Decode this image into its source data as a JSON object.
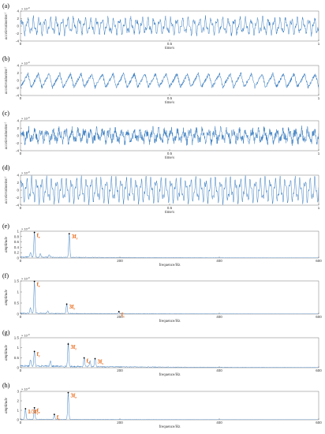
{
  "chart_data": [
    {
      "id": "a",
      "panel_label": "(a)",
      "type": "line",
      "ylabel": "acceleration/ms",
      "ylabel_sup": "-2",
      "xlabel": "time/s",
      "xlim": [
        0,
        1
      ],
      "ylim": [
        -4,
        4
      ],
      "y_exponent": "× 10",
      "y_exponent_power": "-3",
      "xticks": [
        0,
        0.5,
        1
      ],
      "yticks": [
        -4,
        -2,
        0,
        2,
        4
      ],
      "series": [
        {
          "cycles": 52,
          "amplitude": 1.6,
          "noise": 0.5,
          "seed": 11,
          "shape": "sine",
          "points": 1400
        }
      ]
    },
    {
      "id": "b",
      "panel_label": "(b)",
      "type": "line",
      "ylabel": "acceleration/ms",
      "ylabel_sup": "-2",
      "xlabel": "time/s",
      "xlim": [
        0,
        1
      ],
      "ylim": [
        -4,
        4
      ],
      "y_exponent": "× 10",
      "y_exponent_power": "-3",
      "xticks": [
        0,
        0.5,
        1
      ],
      "yticks": [
        -4,
        -2,
        0,
        2,
        4
      ],
      "series": [
        {
          "cycles": 28,
          "amplitude": 1.8,
          "noise": 0.45,
          "seed": 23,
          "shape": "saw",
          "points": 1400
        }
      ]
    },
    {
      "id": "c",
      "panel_label": "(c)",
      "type": "line",
      "ylabel": "acceleration/ms",
      "ylabel_sup": "-2",
      "xlabel": "time/s",
      "xlim": [
        0,
        1
      ],
      "ylim": [
        -4,
        4
      ],
      "y_exponent": "× 10",
      "y_exponent_power": "-3",
      "xticks": [
        0,
        0.5,
        1
      ],
      "yticks": [
        -4,
        -2,
        0,
        2,
        4
      ],
      "series": [
        {
          "cycles": 48,
          "amplitude": 1.2,
          "noise": 1.0,
          "seed": 37,
          "shape": "sine",
          "points": 1400
        }
      ]
    },
    {
      "id": "d",
      "panel_label": "(d)",
      "type": "line",
      "ylabel": "acceleration/ms",
      "ylabel_sup": "-2",
      "xlabel": "time/s",
      "xlim": [
        0,
        1
      ],
      "ylim": [
        -4,
        4
      ],
      "y_exponent": "× 10",
      "y_exponent_power": "-3",
      "xticks": [
        0,
        0.5,
        1
      ],
      "yticks": [
        -4,
        -2,
        0,
        2,
        4
      ],
      "series": [
        {
          "cycles": 60,
          "amplitude": 2.4,
          "noise": 0.35,
          "seed": 41,
          "shape": "sine",
          "points": 1400
        }
      ]
    },
    {
      "id": "e",
      "panel_label": "(e)",
      "type": "line",
      "ylabel": "amplitude",
      "xlabel": "frequence/Hz",
      "xlim": [
        0,
        600
      ],
      "ylim": [
        0,
        1.0
      ],
      "y_exponent": "× 10",
      "y_exponent_power": "-3",
      "xticks": [
        0,
        200,
        400,
        600
      ],
      "yticks": [
        0,
        0.2,
        0.4,
        0.6,
        0.8,
        1.0
      ],
      "noise_floor": 0.05,
      "seed": 5,
      "peaks": [
        {
          "x": 28,
          "y": 0.93,
          "label": "f",
          "label_sub": "r"
        },
        {
          "x": 98,
          "y": 0.88,
          "label": "3f",
          "label_sub": "r"
        },
        {
          "x": 20,
          "y": 0.18
        },
        {
          "x": 40,
          "y": 0.14
        },
        {
          "x": 58,
          "y": 0.09
        }
      ]
    },
    {
      "id": "f",
      "panel_label": "(f)",
      "type": "line",
      "ylabel": "amplitude",
      "xlabel": "frequence/Hz",
      "xlim": [
        0,
        600
      ],
      "ylim": [
        0,
        1.5
      ],
      "y_exponent": "× 10",
      "y_exponent_power": "-3",
      "xticks": [
        0,
        200,
        400,
        600
      ],
      "yticks": [
        0,
        0.5,
        1.0,
        1.5
      ],
      "noise_floor": 0.05,
      "seed": 9,
      "peaks": [
        {
          "x": 28,
          "y": 1.45,
          "label": "f",
          "label_sub": "r"
        },
        {
          "x": 93,
          "y": 0.42,
          "label": "3f",
          "label_sub": "r"
        },
        {
          "x": 198,
          "y": 0.08,
          "label": "f",
          "label_sub": "s"
        },
        {
          "x": 20,
          "y": 0.25
        },
        {
          "x": 55,
          "y": 0.12
        }
      ]
    },
    {
      "id": "g",
      "panel_label": "(g)",
      "type": "line",
      "ylabel": "amplitude",
      "xlabel": "frequence/Hz",
      "xlim": [
        0,
        600
      ],
      "ylim": [
        0,
        1.5
      ],
      "y_exponent": "× 10",
      "y_exponent_power": "-3",
      "xticks": [
        0,
        200,
        400,
        600
      ],
      "yticks": [
        0,
        0.5,
        1.0,
        1.5
      ],
      "noise_floor": 0.12,
      "seed": 17,
      "peaks": [
        {
          "x": 28,
          "y": 0.78,
          "label": "f",
          "label_sub": "r"
        },
        {
          "x": 96,
          "y": 1.15,
          "label": "3f",
          "label_sub": "r"
        },
        {
          "x": 128,
          "y": 0.46,
          "label": "f",
          "label_sub": "s"
        },
        {
          "x": 150,
          "y": 0.42,
          "label": "3f",
          "label_sub": "s"
        },
        {
          "x": 20,
          "y": 0.32
        },
        {
          "x": 60,
          "y": 0.3
        },
        {
          "x": 140,
          "y": 0.28
        }
      ]
    },
    {
      "id": "h",
      "panel_label": "(h)",
      "type": "line",
      "ylabel": "amplitude",
      "xlabel": "frequence/Hz",
      "xlim": [
        0,
        600
      ],
      "ylim": [
        0,
        3
      ],
      "y_exponent": "× 10",
      "y_exponent_power": "-3",
      "xticks": [
        0,
        200,
        400,
        600
      ],
      "yticks": [
        0,
        1,
        2,
        3
      ],
      "noise_floor": 0.07,
      "seed": 29,
      "peaks": [
        {
          "x": 10,
          "y": 1.1,
          "label": "1/3f",
          "label_sub": "r"
        },
        {
          "x": 28,
          "y": 1.2,
          "label": "f",
          "label_sub": "r"
        },
        {
          "x": 68,
          "y": 0.5,
          "label": "f",
          "label_sub": "s"
        },
        {
          "x": 96,
          "y": 2.8,
          "label": "3f",
          "label_sub": "r"
        }
      ]
    }
  ],
  "colors": {
    "line": "#3a7dc0",
    "annotation": "#e8620c",
    "axis": "#555555",
    "marker": "#000000"
  }
}
